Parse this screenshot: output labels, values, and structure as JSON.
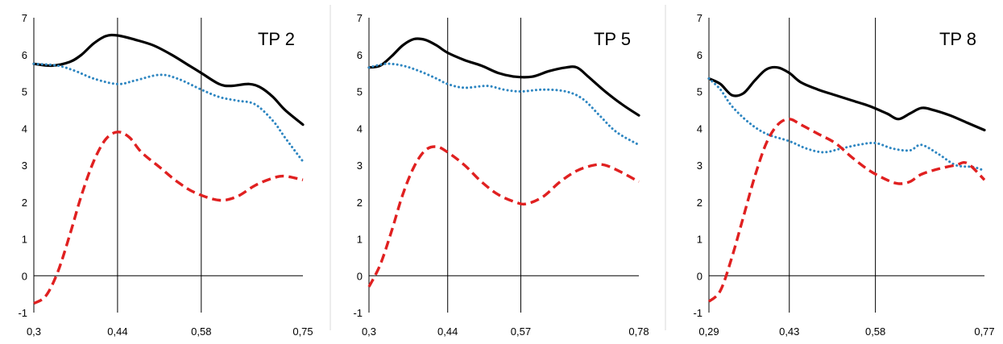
{
  "chart_data": [
    {
      "type": "line",
      "title": "TP 2",
      "x_ticks": [
        "0,3",
        "0,44",
        "0,58",
        "0,75"
      ],
      "x_tick_values": [
        0.3,
        0.44,
        0.58,
        0.75
      ],
      "xlim": [
        0.3,
        0.75
      ],
      "ylim": [
        -1,
        7
      ],
      "y_ticks": [
        "-1",
        "0",
        "1",
        "2",
        "3",
        "4",
        "5",
        "6",
        "7"
      ],
      "vlines": [
        0.44,
        0.58
      ],
      "grid": false,
      "series": [
        {
          "color": "#000000",
          "style": "solid",
          "points": [
            [
              0.3,
              5.75
            ],
            [
              0.33,
              5.7
            ],
            [
              0.36,
              5.8
            ],
            [
              0.38,
              6.0
            ],
            [
              0.4,
              6.3
            ],
            [
              0.42,
              6.5
            ],
            [
              0.44,
              6.52
            ],
            [
              0.47,
              6.4
            ],
            [
              0.5,
              6.25
            ],
            [
              0.53,
              6.0
            ],
            [
              0.56,
              5.7
            ],
            [
              0.58,
              5.5
            ],
            [
              0.61,
              5.2
            ],
            [
              0.63,
              5.15
            ],
            [
              0.66,
              5.2
            ],
            [
              0.68,
              5.1
            ],
            [
              0.7,
              4.85
            ],
            [
              0.72,
              4.5
            ],
            [
              0.75,
              4.1
            ]
          ]
        },
        {
          "color": "#2e86c1",
          "style": "dotted",
          "points": [
            [
              0.3,
              5.75
            ],
            [
              0.34,
              5.7
            ],
            [
              0.37,
              5.55
            ],
            [
              0.4,
              5.35
            ],
            [
              0.44,
              5.2
            ],
            [
              0.47,
              5.3
            ],
            [
              0.51,
              5.45
            ],
            [
              0.54,
              5.35
            ],
            [
              0.58,
              5.05
            ],
            [
              0.61,
              4.85
            ],
            [
              0.64,
              4.75
            ],
            [
              0.67,
              4.65
            ],
            [
              0.7,
              4.2
            ],
            [
              0.72,
              3.75
            ],
            [
              0.75,
              3.1
            ]
          ]
        },
        {
          "color": "#e02020",
          "style": "dashed",
          "points": [
            [
              0.3,
              -0.75
            ],
            [
              0.32,
              -0.55
            ],
            [
              0.34,
              0.1
            ],
            [
              0.36,
              1.1
            ],
            [
              0.38,
              2.2
            ],
            [
              0.4,
              3.1
            ],
            [
              0.42,
              3.7
            ],
            [
              0.44,
              3.9
            ],
            [
              0.46,
              3.75
            ],
            [
              0.48,
              3.35
            ],
            [
              0.51,
              2.95
            ],
            [
              0.54,
              2.55
            ],
            [
              0.57,
              2.25
            ],
            [
              0.61,
              2.05
            ],
            [
              0.64,
              2.15
            ],
            [
              0.67,
              2.45
            ],
            [
              0.7,
              2.65
            ],
            [
              0.72,
              2.7
            ],
            [
              0.75,
              2.6
            ]
          ]
        }
      ]
    },
    {
      "type": "line",
      "title": "TP 5",
      "x_ticks": [
        "0,3",
        "0,44",
        "0,57",
        "0,78"
      ],
      "x_tick_values": [
        0.3,
        0.44,
        0.57,
        0.78
      ],
      "xlim": [
        0.3,
        0.78
      ],
      "ylim": [
        -1,
        7
      ],
      "y_ticks": [
        "-1",
        "0",
        "1",
        "2",
        "3",
        "4",
        "5",
        "6",
        "7"
      ],
      "vlines": [
        0.44,
        0.57
      ],
      "grid": false,
      "series": [
        {
          "color": "#000000",
          "style": "solid",
          "points": [
            [
              0.3,
              5.65
            ],
            [
              0.32,
              5.7
            ],
            [
              0.34,
              5.95
            ],
            [
              0.36,
              6.25
            ],
            [
              0.38,
              6.42
            ],
            [
              0.4,
              6.4
            ],
            [
              0.42,
              6.25
            ],
            [
              0.44,
              6.05
            ],
            [
              0.47,
              5.85
            ],
            [
              0.5,
              5.7
            ],
            [
              0.53,
              5.5
            ],
            [
              0.56,
              5.4
            ],
            [
              0.59,
              5.4
            ],
            [
              0.62,
              5.55
            ],
            [
              0.65,
              5.65
            ],
            [
              0.67,
              5.65
            ],
            [
              0.69,
              5.4
            ],
            [
              0.72,
              5.0
            ],
            [
              0.75,
              4.65
            ],
            [
              0.78,
              4.35
            ]
          ]
        },
        {
          "color": "#2e86c1",
          "style": "dotted",
          "points": [
            [
              0.3,
              5.65
            ],
            [
              0.33,
              5.75
            ],
            [
              0.36,
              5.7
            ],
            [
              0.39,
              5.55
            ],
            [
              0.42,
              5.35
            ],
            [
              0.44,
              5.2
            ],
            [
              0.47,
              5.1
            ],
            [
              0.51,
              5.15
            ],
            [
              0.54,
              5.05
            ],
            [
              0.57,
              5.0
            ],
            [
              0.61,
              5.05
            ],
            [
              0.65,
              5.0
            ],
            [
              0.68,
              4.8
            ],
            [
              0.71,
              4.35
            ],
            [
              0.74,
              3.9
            ],
            [
              0.78,
              3.55
            ]
          ]
        },
        {
          "color": "#e02020",
          "style": "dashed",
          "points": [
            [
              0.3,
              -0.3
            ],
            [
              0.32,
              0.3
            ],
            [
              0.34,
              1.2
            ],
            [
              0.36,
              2.2
            ],
            [
              0.38,
              2.95
            ],
            [
              0.4,
              3.4
            ],
            [
              0.42,
              3.5
            ],
            [
              0.44,
              3.35
            ],
            [
              0.47,
              3.0
            ],
            [
              0.5,
              2.55
            ],
            [
              0.53,
              2.2
            ],
            [
              0.56,
              2.0
            ],
            [
              0.58,
              1.95
            ],
            [
              0.61,
              2.15
            ],
            [
              0.64,
              2.55
            ],
            [
              0.67,
              2.85
            ],
            [
              0.7,
              3.0
            ],
            [
              0.72,
              3.0
            ],
            [
              0.75,
              2.8
            ],
            [
              0.78,
              2.55
            ]
          ]
        }
      ]
    },
    {
      "type": "line",
      "title": "TP 8",
      "x_ticks": [
        "0,29",
        "0,43",
        "0,58",
        "0,77"
      ],
      "x_tick_values": [
        0.29,
        0.43,
        0.58,
        0.77
      ],
      "xlim": [
        0.29,
        0.77
      ],
      "ylim": [
        -1,
        7
      ],
      "y_ticks": [
        "-1",
        "0",
        "1",
        "2",
        "3",
        "4",
        "5",
        "6",
        "7"
      ],
      "vlines": [
        0.43,
        0.58
      ],
      "grid": false,
      "series": [
        {
          "color": "#000000",
          "style": "solid",
          "points": [
            [
              0.29,
              5.35
            ],
            [
              0.31,
              5.2
            ],
            [
              0.33,
              4.9
            ],
            [
              0.35,
              4.95
            ],
            [
              0.37,
              5.3
            ],
            [
              0.39,
              5.6
            ],
            [
              0.41,
              5.65
            ],
            [
              0.43,
              5.5
            ],
            [
              0.45,
              5.25
            ],
            [
              0.48,
              5.05
            ],
            [
              0.51,
              4.9
            ],
            [
              0.54,
              4.75
            ],
            [
              0.57,
              4.6
            ],
            [
              0.6,
              4.4
            ],
            [
              0.62,
              4.25
            ],
            [
              0.64,
              4.4
            ],
            [
              0.66,
              4.55
            ],
            [
              0.68,
              4.5
            ],
            [
              0.71,
              4.35
            ],
            [
              0.74,
              4.15
            ],
            [
              0.77,
              3.95
            ]
          ]
        },
        {
          "color": "#2e86c1",
          "style": "dotted",
          "points": [
            [
              0.29,
              5.35
            ],
            [
              0.31,
              5.05
            ],
            [
              0.33,
              4.6
            ],
            [
              0.36,
              4.15
            ],
            [
              0.39,
              3.85
            ],
            [
              0.43,
              3.65
            ],
            [
              0.46,
              3.45
            ],
            [
              0.49,
              3.35
            ],
            [
              0.52,
              3.45
            ],
            [
              0.55,
              3.55
            ],
            [
              0.58,
              3.6
            ],
            [
              0.61,
              3.45
            ],
            [
              0.64,
              3.4
            ],
            [
              0.66,
              3.55
            ],
            [
              0.69,
              3.3
            ],
            [
              0.72,
              3.0
            ],
            [
              0.75,
              2.95
            ],
            [
              0.77,
              2.85
            ]
          ]
        },
        {
          "color": "#e02020",
          "style": "dashed",
          "points": [
            [
              0.29,
              -0.7
            ],
            [
              0.31,
              -0.4
            ],
            [
              0.33,
              0.5
            ],
            [
              0.35,
              1.6
            ],
            [
              0.37,
              2.7
            ],
            [
              0.39,
              3.6
            ],
            [
              0.41,
              4.1
            ],
            [
              0.43,
              4.25
            ],
            [
              0.45,
              4.1
            ],
            [
              0.48,
              3.85
            ],
            [
              0.51,
              3.6
            ],
            [
              0.54,
              3.2
            ],
            [
              0.57,
              2.85
            ],
            [
              0.6,
              2.6
            ],
            [
              0.62,
              2.5
            ],
            [
              0.64,
              2.55
            ],
            [
              0.66,
              2.75
            ],
            [
              0.69,
              2.9
            ],
            [
              0.72,
              3.0
            ],
            [
              0.74,
              3.05
            ],
            [
              0.77,
              2.6
            ]
          ]
        }
      ]
    }
  ]
}
